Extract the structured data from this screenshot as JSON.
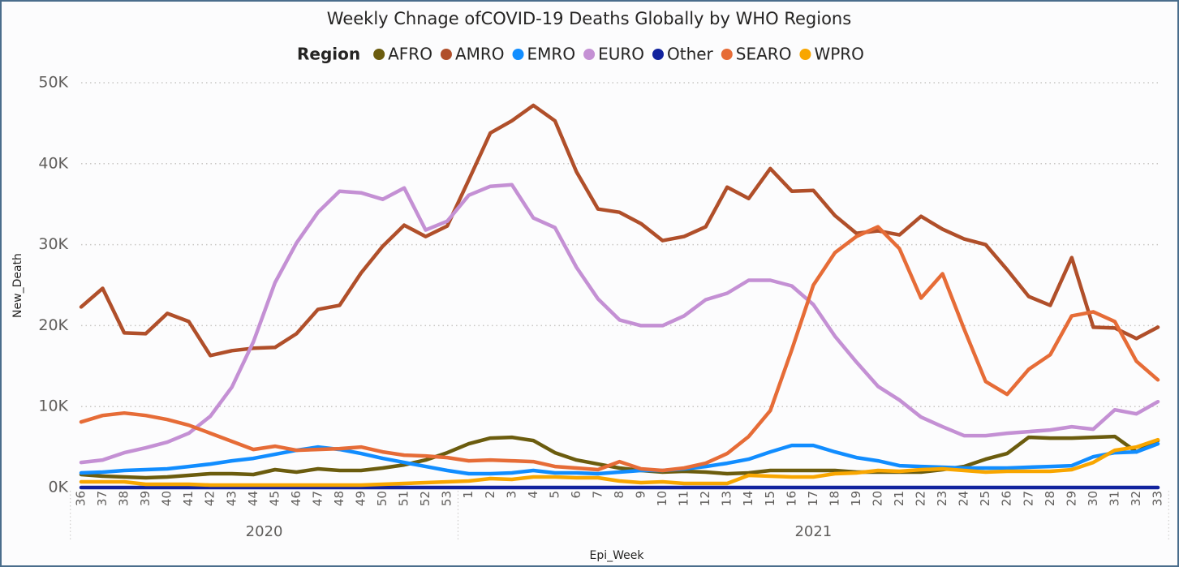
{
  "chart_data": {
    "type": "line",
    "title": "Weekly Chnage ofCOVID-19 Deaths Globally by WHO Regions",
    "legend_title": "Region",
    "x_label": "Epi_Week",
    "y_label": "New_Death",
    "categories": [
      "36",
      "37",
      "38",
      "39",
      "40",
      "41",
      "42",
      "43",
      "44",
      "45",
      "46",
      "47",
      "48",
      "49",
      "50",
      "51",
      "52",
      "53",
      "1",
      "2",
      "3",
      "4",
      "5",
      "6",
      "7",
      "8",
      "9",
      "10",
      "11",
      "12",
      "13",
      "14",
      "15",
      "16",
      "17",
      "18",
      "19",
      "20",
      "21",
      "22",
      "23",
      "24",
      "25",
      "26",
      "27",
      "28",
      "29",
      "30",
      "31",
      "32",
      "33"
    ],
    "year_labels": [
      "2020",
      "2021"
    ],
    "ylim": [
      0,
      50000
    ],
    "yticks": [
      {
        "value": 0,
        "label": "0K"
      },
      {
        "value": 10000,
        "label": "10K"
      },
      {
        "value": 20000,
        "label": "20K"
      },
      {
        "value": 30000,
        "label": "30K"
      },
      {
        "value": 40000,
        "label": "40K"
      },
      {
        "value": 50000,
        "label": "50K"
      }
    ],
    "grid": true,
    "legend_position": "top",
    "series": [
      {
        "name": "AFRO",
        "color": "#6b5c0e",
        "values": [
          1600,
          1400,
          1300,
          1200,
          1300,
          1500,
          1700,
          1700,
          1600,
          2200,
          1900,
          2300,
          2100,
          2100,
          2400,
          2800,
          3400,
          4300,
          5400,
          6100,
          6200,
          5800,
          4300,
          3400,
          2900,
          2400,
          2100,
          1900,
          2000,
          1900,
          1700,
          1800,
          2100,
          2100,
          2100,
          2100,
          1900,
          1900,
          1900,
          1900,
          2200,
          2600,
          3500,
          4200,
          6200,
          6100,
          6100,
          6200,
          6300,
          4400,
          5800
        ]
      },
      {
        "name": "AMRO",
        "color": "#b04f2a",
        "values": [
          22300,
          24600,
          19100,
          19000,
          21500,
          20500,
          16300,
          16900,
          17200,
          17300,
          19000,
          22000,
          22500,
          26500,
          29800,
          32400,
          31000,
          32300,
          38000,
          43800,
          45300,
          47200,
          45300,
          39000,
          34400,
          34000,
          32600,
          30500,
          31000,
          32200,
          37100,
          35700,
          39400,
          36600,
          36700,
          33600,
          31400,
          31700,
          31200,
          33500,
          31900,
          30700,
          30000,
          26900,
          23600,
          22500,
          28400,
          19800,
          19700,
          18400,
          19800
        ]
      },
      {
        "name": "EMRO",
        "color": "#118dff",
        "values": [
          1800,
          1900,
          2100,
          2200,
          2300,
          2600,
          2900,
          3300,
          3600,
          4100,
          4600,
          5000,
          4700,
          4200,
          3600,
          3100,
          2600,
          2100,
          1700,
          1700,
          1800,
          2100,
          1800,
          1800,
          1700,
          1900,
          2100,
          2100,
          2300,
          2600,
          3000,
          3500,
          4400,
          5200,
          5200,
          4400,
          3700,
          3300,
          2700,
          2600,
          2500,
          2400,
          2400,
          2400,
          2500,
          2600,
          2700,
          3800,
          4300,
          4400,
          5400
        ]
      },
      {
        "name": "EURO",
        "color": "#c490d4",
        "values": [
          3100,
          3400,
          4300,
          4900,
          5600,
          6700,
          8800,
          12400,
          18000,
          25300,
          30200,
          34000,
          36600,
          36400,
          35600,
          37000,
          31800,
          32900,
          36100,
          37200,
          37400,
          33300,
          32100,
          27200,
          23300,
          20700,
          20000,
          20000,
          21200,
          23200,
          24000,
          25600,
          25600,
          24900,
          22600,
          18700,
          15500,
          12500,
          10800,
          8700,
          7500,
          6400,
          6400,
          6700,
          6900,
          7100,
          7500,
          7200,
          9600,
          9100,
          10600
        ]
      },
      {
        "name": "Other",
        "color": "#12239e",
        "values": [
          0,
          0,
          0,
          0,
          0,
          0,
          0,
          0,
          0,
          0,
          0,
          0,
          0,
          0,
          0,
          0,
          0,
          0,
          0,
          0,
          0,
          0,
          0,
          0,
          0,
          0,
          0,
          0,
          0,
          0,
          0,
          0,
          0,
          0,
          0,
          0,
          0,
          0,
          0,
          0,
          0,
          0,
          0,
          0,
          0,
          0,
          0,
          0,
          0,
          0,
          0
        ]
      },
      {
        "name": "SEARO",
        "color": "#e66c37",
        "values": [
          8100,
          8900,
          9200,
          8900,
          8400,
          7700,
          6700,
          5700,
          4700,
          5100,
          4600,
          4700,
          4800,
          5000,
          4400,
          4000,
          3900,
          3700,
          3300,
          3400,
          3300,
          3200,
          2600,
          2400,
          2200,
          3200,
          2300,
          2100,
          2400,
          3000,
          4200,
          6300,
          9500,
          17000,
          25000,
          29000,
          31000,
          32200,
          29500,
          23400,
          26400,
          19600,
          13100,
          11500,
          14600,
          16400,
          21200,
          21700,
          20500,
          15600,
          13300
        ]
      },
      {
        "name": "WPRO",
        "color": "#f8a600",
        "values": [
          700,
          700,
          700,
          400,
          400,
          400,
          300,
          300,
          300,
          300,
          300,
          300,
          300,
          300,
          400,
          500,
          600,
          700,
          800,
          1100,
          1000,
          1300,
          1300,
          1200,
          1200,
          800,
          600,
          700,
          500,
          500,
          500,
          1500,
          1400,
          1300,
          1300,
          1700,
          1800,
          2100,
          2000,
          2200,
          2300,
          2100,
          1900,
          2000,
          2000,
          2000,
          2200,
          3100,
          4600,
          5000,
          5900
        ]
      }
    ]
  }
}
